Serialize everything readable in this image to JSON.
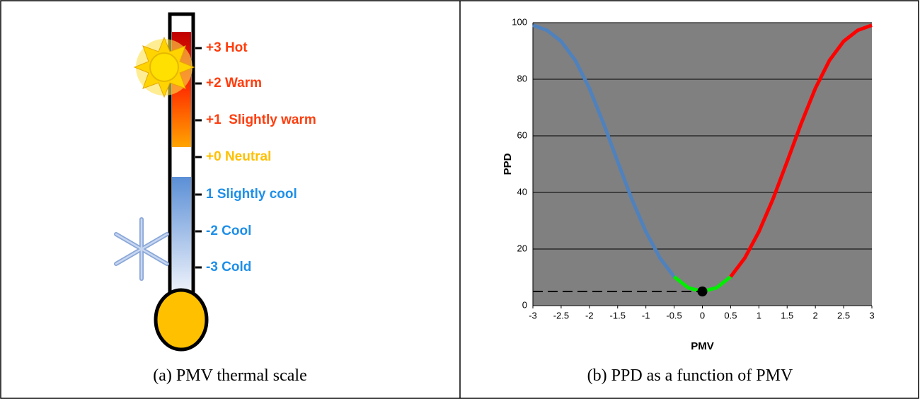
{
  "thermal_scale": {
    "labels": [
      "+3 Hot",
      "+2 Warm",
      "+1  Slightly warm",
      "+0 Neutral",
      "1 Slightly cool",
      "-2 Cool",
      "-3 Cold"
    ],
    "caption": "(a) PMV thermal scale"
  },
  "chart_data": {
    "type": "line",
    "caption": "(b) PPD as a function of PMV",
    "x_label": "PMV",
    "y_label": "PPD",
    "series": [
      {
        "color": "#4f81bd",
        "x": [
          -3,
          -2.75,
          -2.5,
          -2.25,
          -2,
          -1.75,
          -1.5,
          -1.25,
          -1,
          -0.75,
          -0.5
        ],
        "values": [
          99.1,
          97.3,
          93.4,
          86.7,
          76.8,
          64.4,
          50.9,
          37.7,
          26.1,
          16.8,
          10.2
        ]
      },
      {
        "color": "#00ee00",
        "x": [
          -0.5,
          -0.25,
          0,
          0.25,
          0.5
        ],
        "values": [
          10.2,
          6.3,
          5,
          6.3,
          10.2
        ]
      },
      {
        "color": "#ff0000",
        "x": [
          0.5,
          0.75,
          1,
          1.25,
          1.5,
          1.75,
          2,
          2.25,
          2.5,
          2.75,
          3
        ],
        "values": [
          10.2,
          16.8,
          26.1,
          37.7,
          50.9,
          64.4,
          76.8,
          86.7,
          93.4,
          97.3,
          99.1
        ]
      }
    ],
    "marker": {
      "x": 0,
      "y": 5,
      "color": "#000000"
    },
    "xlim": [
      -3,
      3
    ],
    "ylim": [
      0,
      100
    ],
    "xticks": [
      -3,
      -2.5,
      -2,
      -1.5,
      -1,
      -0.5,
      0,
      0.5,
      1,
      1.5,
      2,
      2.5,
      3
    ],
    "yticks": [
      0,
      20,
      40,
      60,
      80,
      100
    ],
    "grid": true,
    "background": "#808080"
  }
}
